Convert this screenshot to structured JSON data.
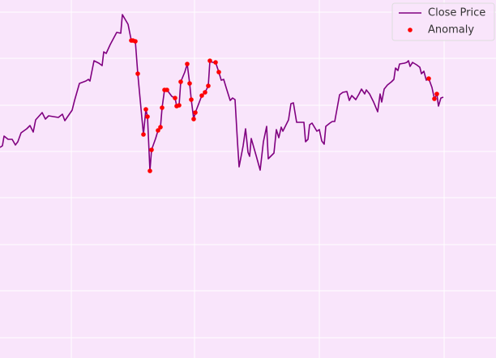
{
  "chart_data": {
    "type": "line",
    "xlim": [
      0,
      612
    ],
    "ylim": [
      0,
      442
    ],
    "xticks": [
      88,
      240,
      394,
      548
    ],
    "yticks": [
      25,
      83,
      140,
      198,
      255,
      312,
      370,
      427
    ],
    "grid": true,
    "legend": "upper right",
    "background": "#f9e5fb",
    "series": [
      {
        "name": "Close Price",
        "type": "line",
        "color": "#800080",
        "x": [
          0,
          3,
          5,
          10,
          15,
          19,
          22,
          26,
          33,
          37,
          41,
          44,
          52,
          56,
          60,
          72,
          77,
          80,
          89,
          92,
          98,
          106,
          109,
          111,
          116,
          122,
          126,
          128,
          131,
          136,
          144,
          149,
          151,
          158,
          162,
          165,
          167,
          170,
          175,
          177,
          180,
          182,
          185,
          187,
          192,
          195,
          198,
          200,
          203,
          206,
          212,
          216,
          218,
          221,
          223,
          228,
          231,
          234,
          236,
          239,
          241,
          246,
          249,
          253,
          257,
          259,
          262,
          266,
          270,
          273,
          276,
          279,
          284,
          287,
          290,
          293,
          295,
          300,
          303,
          306,
          308,
          310,
          316,
          321,
          325,
          329,
          331,
          334,
          338,
          341,
          344,
          347,
          349,
          356,
          359,
          362,
          366,
          372,
          375,
          377,
          380,
          382,
          385,
          391,
          394,
          397,
          400,
          402,
          407,
          410,
          413,
          417,
          419,
          423,
          428,
          431,
          434,
          439,
          443,
          446,
          450,
          452,
          456,
          461,
          466,
          469,
          471,
          474,
          478,
          483,
          486,
          488,
          491,
          493,
          499,
          502,
          504,
          506,
          509,
          514,
          518,
          520,
          523,
          526,
          529,
          533,
          536,
          539,
          541,
          544,
          547
        ],
        "values": [
          260,
          262,
          274,
          270,
          270,
          263,
          267,
          278,
          283,
          287,
          279,
          294,
          303,
          295,
          299,
          297,
          301,
          293,
          306,
          318,
          339,
          342,
          344,
          342,
          367,
          364,
          361,
          378,
          376,
          387,
          402,
          401,
          424,
          412,
          392,
          392,
          391,
          351,
          297,
          276,
          307,
          298,
          231,
          257,
          271,
          281,
          285,
          309,
          331,
          331,
          323,
          321,
          311,
          312,
          341,
          353,
          363,
          339,
          319,
          295,
          303,
          316,
          324,
          328,
          336,
          367,
          365,
          365,
          353,
          343,
          344,
          334,
          318,
          321,
          319,
          267,
          236,
          262,
          283,
          254,
          249,
          271,
          250,
          232,
          267,
          286,
          246,
          249,
          253,
          282,
          272,
          285,
          280,
          294,
          314,
          315,
          291,
          291,
          291,
          267,
          270,
          288,
          290,
          280,
          282,
          268,
          264,
          286,
          290,
          292,
          292,
          314,
          325,
          328,
          329,
          318,
          324,
          319,
          326,
          332,
          326,
          331,
          326,
          316,
          304,
          326,
          316,
          332,
          337,
          341,
          344,
          358,
          355,
          363,
          364,
          365,
          367,
          360,
          365,
          362,
          359,
          351,
          354,
          343,
          345,
          334,
          320,
          326,
          311,
          321,
          322
        ]
      },
      {
        "name": "Anomaly",
        "type": "scatter",
        "color": "#ff0000",
        "x": [
          162,
          164,
          167,
          170,
          177,
          180,
          182,
          185,
          187,
          195,
          198,
          200,
          203,
          206,
          216,
          218,
          221,
          223,
          231,
          234,
          236,
          239,
          241,
          249,
          253,
          257,
          259,
          266,
          270,
          529,
          536,
          539
        ],
        "values": [
          392,
          392,
          391,
          351,
          276,
          307,
          298,
          231,
          257,
          281,
          285,
          309,
          331,
          331,
          321,
          311,
          312,
          341,
          363,
          339,
          319,
          295,
          303,
          324,
          328,
          336,
          367,
          365,
          353,
          345,
          320,
          326
        ]
      }
    ]
  }
}
